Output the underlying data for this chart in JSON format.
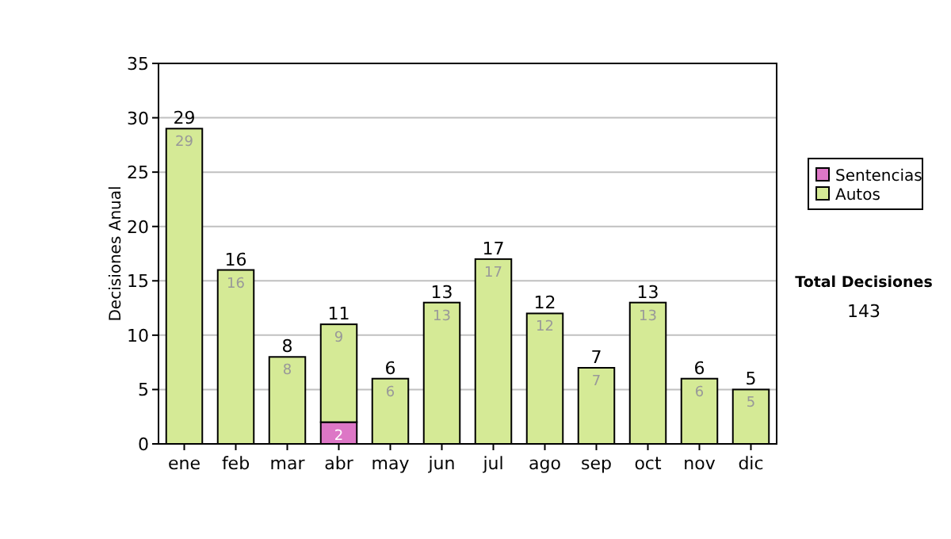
{
  "chart_data": {
    "type": "bar",
    "stacked": true,
    "ylabel": "Decisiones Anual",
    "categories": [
      "ene",
      "feb",
      "mar",
      "abr",
      "may",
      "jun",
      "jul",
      "ago",
      "sep",
      "oct",
      "nov",
      "dic"
    ],
    "series": [
      {
        "name": "Sentencias",
        "color": "#dd77c6",
        "values": [
          null,
          null,
          null,
          2,
          null,
          null,
          null,
          null,
          null,
          null,
          null,
          null
        ],
        "value_labels": [
          null,
          null,
          null,
          "2",
          null,
          null,
          null,
          null,
          null,
          null,
          null,
          null
        ]
      },
      {
        "name": "Autos",
        "color": "#d5ea96",
        "values": [
          29,
          16,
          8,
          9,
          6,
          13,
          17,
          12,
          7,
          13,
          6,
          5
        ],
        "value_labels": [
          "29",
          "16",
          "8",
          "9",
          "6",
          "13",
          "17",
          "12",
          "7",
          "13",
          "6",
          "5"
        ]
      }
    ],
    "totals": [
      "29",
      "16",
      "8",
      "11",
      "6",
      "13",
      "17",
      "12",
      "7",
      "13",
      "6",
      "5"
    ],
    "ylim": [
      0,
      35
    ],
    "yticks": [
      0,
      5,
      10,
      15,
      20,
      25,
      30,
      35
    ],
    "grid": "y",
    "legend": "right",
    "annotations": [
      "Total Decisiones",
      "143"
    ]
  }
}
